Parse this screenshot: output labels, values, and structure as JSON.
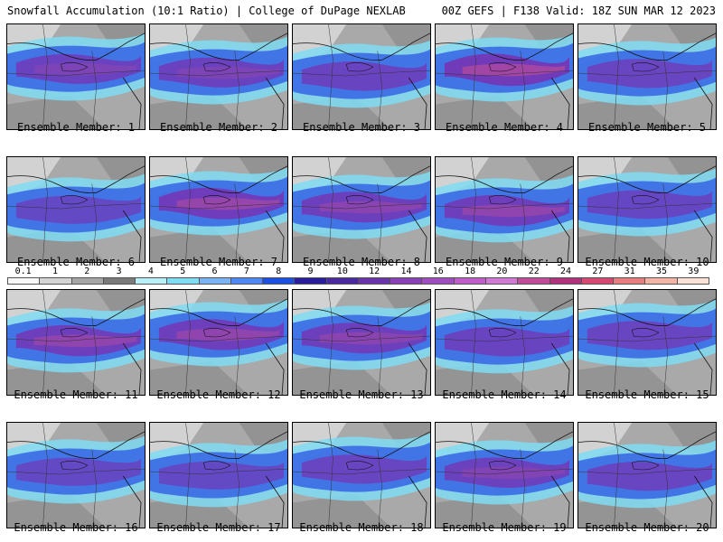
{
  "header": {
    "left_title": "Snowfall Accumulation (10:1 Ratio) | College of DuPage NEXLAB",
    "right_title": "00Z GEFS | F138 Valid: 18Z SUN MAR 12 2023"
  },
  "colorbar": {
    "ticks": [
      "0.1",
      "1",
      "2",
      "3",
      "4",
      "5",
      "6",
      "7",
      "8",
      "9",
      "10",
      "12",
      "14",
      "16",
      "18",
      "20",
      "22",
      "24",
      "27",
      "31",
      "35",
      "39"
    ],
    "colors": [
      "#f7f7f7",
      "#d4d4d4",
      "#a6a6a6",
      "#7a7a7a",
      "#b8f0f8",
      "#7fdcf3",
      "#7ab4f5",
      "#4e88f0",
      "#1d4fe0",
      "#2a1f9a",
      "#4b2a9e",
      "#6a35a8",
      "#8a40b5",
      "#a04dc0",
      "#c05ec9",
      "#d07ad8",
      "#c04d9c",
      "#b0337e",
      "#d44a73",
      "#e57e7e",
      "#f3b4a4",
      "#fbe2d6"
    ]
  },
  "members": [
    {
      "label": "Ensemble Member: 1",
      "intensity": 0.55
    },
    {
      "label": "Ensemble Member: 2",
      "intensity": 0.55
    },
    {
      "label": "Ensemble Member: 3",
      "intensity": 0.5
    },
    {
      "label": "Ensemble Member: 4",
      "intensity": 0.85
    },
    {
      "label": "Ensemble Member: 5",
      "intensity": 0.45
    },
    {
      "label": "Ensemble Member: 6",
      "intensity": 0.3
    },
    {
      "label": "Ensemble Member: 7",
      "intensity": 0.75
    },
    {
      "label": "Ensemble Member: 8",
      "intensity": 0.65
    },
    {
      "label": "Ensemble Member: 9",
      "intensity": 0.7
    },
    {
      "label": "Ensemble Member: 10",
      "intensity": 0.4
    },
    {
      "label": "Ensemble Member: 11",
      "intensity": 0.7
    },
    {
      "label": "Ensemble Member: 12",
      "intensity": 0.7
    },
    {
      "label": "Ensemble Member: 13",
      "intensity": 0.65
    },
    {
      "label": "Ensemble Member: 14",
      "intensity": 0.5
    },
    {
      "label": "Ensemble Member: 15",
      "intensity": 0.45
    },
    {
      "label": "Ensemble Member: 16",
      "intensity": 0.3
    },
    {
      "label": "Ensemble Member: 17",
      "intensity": 0.3
    },
    {
      "label": "Ensemble Member: 18",
      "intensity": 0.45
    },
    {
      "label": "Ensemble Member: 19",
      "intensity": 0.6
    },
    {
      "label": "Ensemble Member: 20",
      "intensity": 0.45
    }
  ]
}
